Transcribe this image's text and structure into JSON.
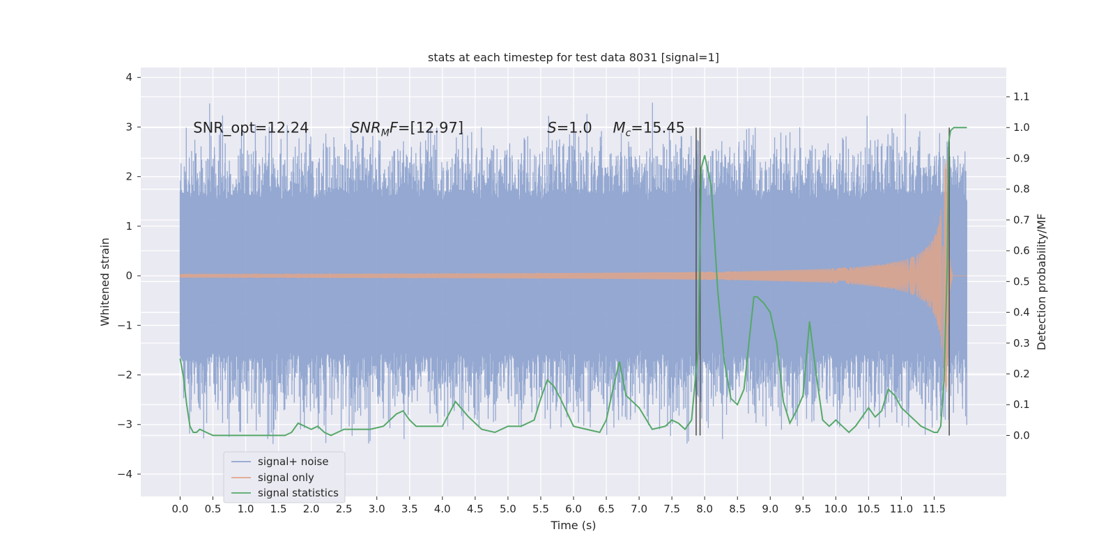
{
  "chart_data": {
    "type": "line",
    "title": "stats at each timestep for test data 8031 [signal=1]",
    "xlabel": "Time (s)",
    "ylabel": "Whitened strain",
    "y2label": "Detection probability/MF",
    "xlim": [
      -0.6,
      12.6
    ],
    "ylim": [
      -4.45,
      4.2
    ],
    "y2lim": [
      -0.198,
      1.195
    ],
    "x_ticks": [
      "0.0",
      "0.5",
      "1.0",
      "1.5",
      "2.0",
      "2.5",
      "3.0",
      "3.5",
      "4.0",
      "4.5",
      "5.0",
      "5.5",
      "6.0",
      "6.5",
      "7.0",
      "7.5",
      "8.0",
      "8.5",
      "9.0",
      "9.5",
      "10.0",
      "10.5",
      "11.0",
      "11.5"
    ],
    "y_ticks": [
      "4",
      "3",
      "2",
      "1",
      "0",
      "−1",
      "−2",
      "−3",
      "−4"
    ],
    "y2_ticks": [
      "1.1",
      "1.0",
      "0.9",
      "0.8",
      "0.7",
      "0.6",
      "0.5",
      "0.4",
      "0.3",
      "0.2",
      "0.1",
      "0.0"
    ],
    "grid": true,
    "legend_position": "lower-left",
    "colors": {
      "background": "#eaeaf2",
      "grid": "#ffffff",
      "noise": "#8fa4cf",
      "signal": "#e0a58a",
      "stats": "#55a868",
      "marker": "#555555"
    },
    "annotations": [
      {
        "text": "SNR_opt=12.24",
        "x": 0.2,
        "y": 3.0
      },
      {
        "text": "SNR_MF=[12.97]",
        "main": "SNR",
        "sub": "M",
        "rest": "F=[12.97]",
        "x": 2.6,
        "y": 3.0
      },
      {
        "text": "S=1.0",
        "main": "S",
        "rest": "=1.0",
        "x": 5.6,
        "y": 3.0
      },
      {
        "text": "M_c=15.45",
        "main": "M",
        "sub": "c",
        "rest": "=15.45",
        "x": 6.6,
        "y": 3.0
      }
    ],
    "markers_x": [
      7.87,
      7.93,
      11.73
    ],
    "series": [
      {
        "name": "signal+ noise",
        "description_range": [
          0.0,
          12.0
        ],
        "envelope": {
          "core": 1.75,
          "peak": 3.85
        }
      },
      {
        "name": "signal only",
        "chirp": {
          "t_merger": 11.7,
          "start_amp": 0.02,
          "max_amp": 2.35
        }
      },
      {
        "name": "signal statistics",
        "axis": "right",
        "x": [
          0.0,
          0.05,
          0.1,
          0.15,
          0.2,
          0.25,
          0.3,
          0.4,
          0.5,
          0.6,
          0.8,
          1.0,
          1.2,
          1.4,
          1.6,
          1.7,
          1.8,
          1.9,
          2.0,
          2.1,
          2.2,
          2.3,
          2.4,
          2.5,
          2.7,
          2.9,
          3.1,
          3.3,
          3.4,
          3.5,
          3.6,
          3.8,
          4.0,
          4.1,
          4.2,
          4.4,
          4.6,
          4.8,
          5.0,
          5.2,
          5.4,
          5.5,
          5.6,
          5.7,
          5.8,
          6.0,
          6.2,
          6.4,
          6.5,
          6.6,
          6.7,
          6.8,
          6.9,
          7.0,
          7.2,
          7.4,
          7.5,
          7.6,
          7.7,
          7.8,
          7.9,
          7.95,
          8.0,
          8.1,
          8.2,
          8.3,
          8.4,
          8.5,
          8.6,
          8.7,
          8.75,
          8.8,
          8.9,
          9.0,
          9.1,
          9.2,
          9.3,
          9.4,
          9.5,
          9.6,
          9.7,
          9.8,
          9.9,
          10.0,
          10.1,
          10.2,
          10.3,
          10.4,
          10.5,
          10.6,
          10.7,
          10.8,
          10.9,
          11.0,
          11.1,
          11.2,
          11.3,
          11.4,
          11.5,
          11.55,
          11.6,
          11.65,
          11.7,
          11.72,
          11.75,
          11.8,
          11.85,
          11.9,
          11.95,
          12.0
        ],
        "values": [
          0.25,
          0.19,
          0.1,
          0.03,
          0.01,
          0.01,
          0.02,
          0.01,
          0.0,
          0.0,
          0.0,
          0.0,
          0.0,
          0.0,
          0.0,
          0.01,
          0.04,
          0.03,
          0.02,
          0.03,
          0.01,
          0.0,
          0.01,
          0.02,
          0.02,
          0.02,
          0.03,
          0.07,
          0.08,
          0.05,
          0.03,
          0.03,
          0.03,
          0.07,
          0.11,
          0.06,
          0.02,
          0.01,
          0.03,
          0.03,
          0.05,
          0.12,
          0.18,
          0.16,
          0.12,
          0.03,
          0.02,
          0.01,
          0.05,
          0.15,
          0.24,
          0.13,
          0.11,
          0.09,
          0.02,
          0.03,
          0.05,
          0.04,
          0.02,
          0.05,
          0.28,
          0.87,
          0.91,
          0.81,
          0.47,
          0.24,
          0.12,
          0.1,
          0.15,
          0.35,
          0.45,
          0.45,
          0.43,
          0.4,
          0.3,
          0.11,
          0.04,
          0.08,
          0.13,
          0.37,
          0.2,
          0.05,
          0.03,
          0.05,
          0.03,
          0.01,
          0.03,
          0.06,
          0.09,
          0.06,
          0.08,
          0.15,
          0.13,
          0.09,
          0.07,
          0.05,
          0.03,
          0.02,
          0.01,
          0.01,
          0.03,
          0.18,
          0.55,
          0.95,
          0.99,
          1.0,
          1.0,
          1.0,
          1.0,
          1.0
        ]
      }
    ]
  }
}
